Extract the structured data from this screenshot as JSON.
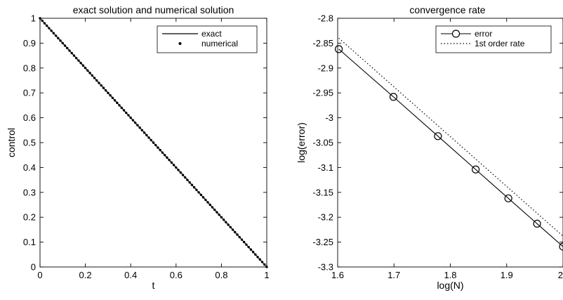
{
  "chart_data": [
    {
      "type": "line",
      "title": "exact solution and numerical solution",
      "xlabel": "t",
      "ylabel": "control",
      "xlim": [
        0,
        1
      ],
      "ylim": [
        0,
        1
      ],
      "xticks": [
        "0",
        "0.2",
        "0.4",
        "0.6",
        "0.8",
        "1"
      ],
      "yticks": [
        "0",
        "0.1",
        "0.2",
        "0.3",
        "0.4",
        "0.5",
        "0.6",
        "0.7",
        "0.8",
        "0.9",
        "1"
      ],
      "grid": false,
      "legend": "top-right",
      "series": [
        {
          "name": "exact",
          "style": "solid line",
          "x": [
            0,
            1
          ],
          "y": [
            1,
            0
          ]
        },
        {
          "name": "numerical",
          "style": "dot markers",
          "x_start": 0,
          "x_end": 1,
          "points": 101,
          "y_start": 1,
          "y_end": 0
        }
      ]
    },
    {
      "type": "line",
      "title": "convergence rate",
      "xlabel": "log(N)",
      "ylabel": "log(error)",
      "xlim": [
        1.6,
        2
      ],
      "ylim": [
        -3.3,
        -2.8
      ],
      "xticks": [
        "1.6",
        "1.7",
        "1.8",
        "1.9",
        "2"
      ],
      "yticks": [
        "-3.3",
        "-3.25",
        "-3.2",
        "-3.15",
        "-3.1",
        "-3.05",
        "-3",
        "-2.95",
        "-2.9",
        "-2.85",
        "-2.8"
      ],
      "grid": false,
      "legend": "top-right",
      "series": [
        {
          "name": "error",
          "style": "solid line with circle markers",
          "x": [
            1.602,
            1.699,
            1.778,
            1.845,
            1.903,
            1.954,
            2.0
          ],
          "y": [
            -2.862,
            -2.958,
            -3.037,
            -3.104,
            -3.162,
            -3.213,
            -3.259
          ]
        },
        {
          "name": "1st order rate",
          "style": "dotted line",
          "x": [
            1.602,
            2.0
          ],
          "y": [
            -2.84,
            -3.238
          ]
        }
      ]
    }
  ]
}
